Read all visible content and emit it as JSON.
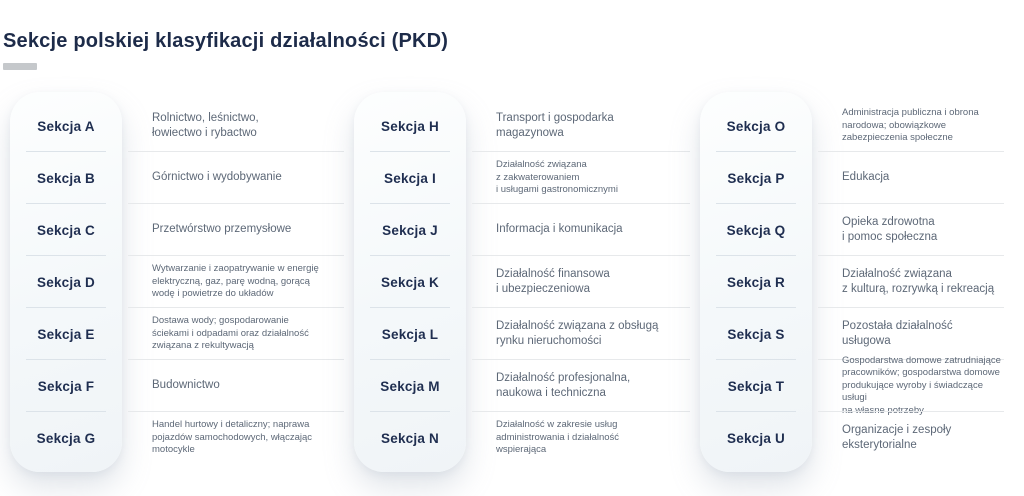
{
  "title": "Sekcje polskiej klasyfikacji działalności (PKD)",
  "colors": {
    "title": "#1d2b49",
    "section_label": "#1f2e50",
    "description": "#5d6877",
    "pill_background": "#f4f8fa",
    "pill_divider": "#dce3e9",
    "description_divider": "#e7e9eb",
    "title_dash": "#c5c8cb",
    "page_background": "#ffffff"
  },
  "columns": [
    {
      "rows": [
        {
          "label": "Sekcja A",
          "desc": "Rolnictwo, leśnictwo,\nłowiectwo i rybactwo",
          "small": false
        },
        {
          "label": "Sekcja B",
          "desc": "Górnictwo i wydobywanie",
          "small": false
        },
        {
          "label": "Sekcja C",
          "desc": "Przetwórstwo przemysłowe",
          "small": false
        },
        {
          "label": "Sekcja D",
          "desc": "Wytwarzanie i zaopatrywanie w energię\nelektryczną, gaz, parę wodną, gorącą\nwodę i powietrze do układów",
          "small": true
        },
        {
          "label": "Sekcja E",
          "desc": "Dostawa wody; gospodarowanie\nściekami i odpadami oraz działalność\nzwiązana z rekultywacją",
          "small": true
        },
        {
          "label": "Sekcja F",
          "desc": "Budownictwo",
          "small": false
        },
        {
          "label": "Sekcja G",
          "desc": "Handel hurtowy i detaliczny; naprawa\npojazdów samochodowych, włączając\nmotocykle",
          "small": true
        }
      ]
    },
    {
      "rows": [
        {
          "label": "Sekcja H",
          "desc": "Transport i gospodarka\nmagazynowa",
          "small": false
        },
        {
          "label": "Sekcja I",
          "desc": "Działalność związana\nz zakwaterowaniem\ni usługami gastronomicznymi",
          "small": true
        },
        {
          "label": "Sekcja J",
          "desc": "Informacja i komunikacja",
          "small": false
        },
        {
          "label": "Sekcja K",
          "desc": "Działalność finansowa\ni ubezpieczeniowa",
          "small": false
        },
        {
          "label": "Sekcja L",
          "desc": "Działalność związana z obsługą\nrynku nieruchomości",
          "small": false
        },
        {
          "label": "Sekcja M",
          "desc": "Działalność profesjonalna,\nnaukowa i techniczna",
          "small": false
        },
        {
          "label": "Sekcja N",
          "desc": "Działalność w zakresie usług\nadministrowania i działalność\nwspierająca",
          "small": true
        }
      ]
    },
    {
      "rows": [
        {
          "label": "Sekcja O",
          "desc": "Administracja publiczna i obrona\nnarodowa; obowiązkowe\nzabezpieczenia społeczne",
          "small": true
        },
        {
          "label": "Sekcja P",
          "desc": "Edukacja",
          "small": false
        },
        {
          "label": "Sekcja Q",
          "desc": "Opieka zdrowotna\ni pomoc społeczna",
          "small": false
        },
        {
          "label": "Sekcja R",
          "desc": "Działalność związana\nz kulturą, rozrywką i rekreacją",
          "small": false
        },
        {
          "label": "Sekcja S",
          "desc": "Pozostała działalność\nusługowa",
          "small": false
        },
        {
          "label": "Sekcja T",
          "desc": "Gospodarstwa domowe zatrudniające\npracowników; gospodarstwa domowe\nprodukujące wyroby i świadczące usługi\nna własne potrzeby",
          "small": true
        },
        {
          "label": "Sekcja U",
          "desc": "Organizacje i zespoły\neksterytorialne",
          "small": false
        }
      ]
    }
  ]
}
